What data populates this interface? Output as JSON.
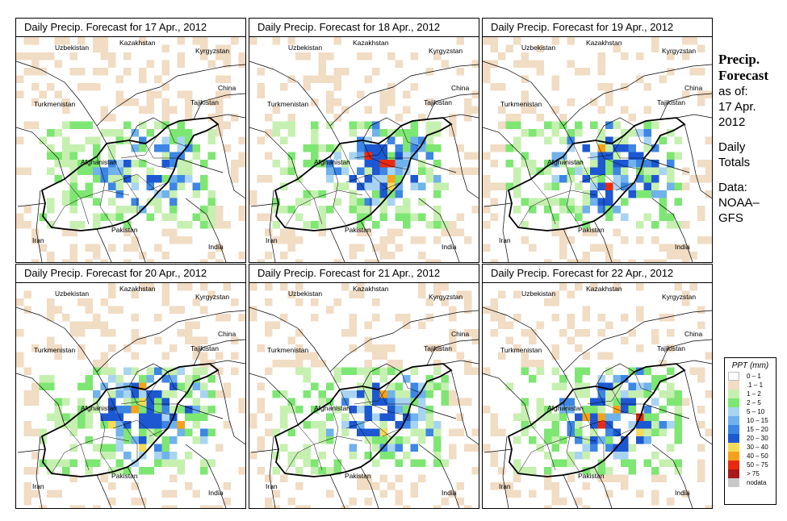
{
  "panels": [
    {
      "title": "Daily Precip. Forecast for  17 Apr., 2012",
      "seed": 17,
      "intensity": 0.85
    },
    {
      "title": "Daily Precip. Forecast for  18 Apr., 2012",
      "seed": 18,
      "intensity": 1.0
    },
    {
      "title": "Daily Precip. Forecast for  19 Apr., 2012",
      "seed": 19,
      "intensity": 1.25
    },
    {
      "title": "Daily Precip. Forecast for  20 Apr., 2012",
      "seed": 20,
      "intensity": 1.35
    },
    {
      "title": "Daily Precip. Forecast for  21 Apr., 2012",
      "seed": 21,
      "intensity": 1.15
    },
    {
      "title": "Daily Precip. Forecast for  22 Apr., 2012",
      "seed": 22,
      "intensity": 1.2
    }
  ],
  "country_labels": {
    "uzbekistan": "Uzbekistan",
    "kazakhstan": "Kazakhstan",
    "kyrgyzstan": "Kyrgyzstan",
    "china": "China",
    "turkmenistan": "Turkmenistan",
    "tajikistan": "Tajikistan",
    "afghanistan": "Afghanistan",
    "pakistan": "Pakistan",
    "iran": "Iran",
    "india": "India"
  },
  "sidebar": {
    "title_line1": "Precip.",
    "title_line2": "Forecast",
    "asof_line1": "as of:",
    "asof_line2": "17 Apr.",
    "asof_line3": "2012",
    "daily_line1": "Daily",
    "daily_line2": "Totals",
    "data_line1": "Data:",
    "data_line2": "NOAA–",
    "data_line3": "GFS"
  },
  "legend": {
    "title": "PPT (mm)",
    "items": [
      {
        "label": "0 – 1",
        "color": "#ffffff"
      },
      {
        "label": ".1 – 1",
        "color": "#f1dcc4"
      },
      {
        "label": "1 – 2",
        "color": "#c6f0b0"
      },
      {
        "label": "2 – 5",
        "color": "#7ee673"
      },
      {
        "label": "5 – 10",
        "color": "#a8d4f2"
      },
      {
        "label": "10 – 15",
        "color": "#6fb2ec"
      },
      {
        "label": "15 – 20",
        "color": "#3d86e3"
      },
      {
        "label": "20 – 30",
        "color": "#1d58d2"
      },
      {
        "label": "30 – 40",
        "color": "#f4dc58"
      },
      {
        "label": "40 – 50",
        "color": "#f5a21a"
      },
      {
        "label": "50 – 75",
        "color": "#ea2a10"
      },
      {
        "label": "> 75",
        "color": "#a81a1a"
      },
      {
        "label": "nodata",
        "color": "#c8c8c8"
      }
    ]
  }
}
